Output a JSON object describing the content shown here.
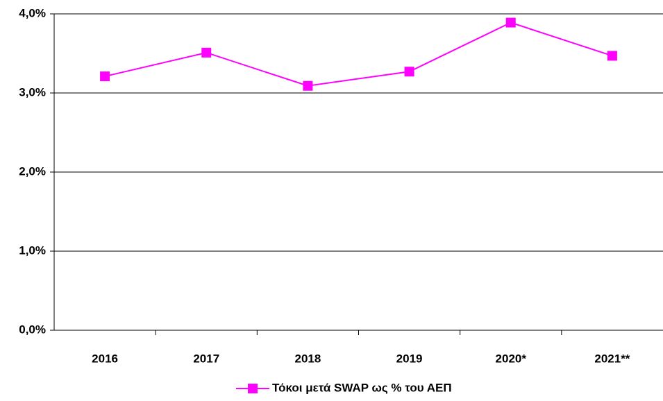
{
  "chart_data": {
    "type": "line",
    "categories": [
      "2016",
      "2017",
      "2018",
      "2019",
      "2020*",
      "2021**"
    ],
    "series": [
      {
        "name": "Τόκοι μετά SWAP ως % του ΑΕΠ",
        "color": "#ff00ff",
        "values": [
          3.21,
          3.51,
          3.09,
          3.27,
          3.89,
          3.47
        ]
      }
    ],
    "ylim": [
      0,
      4
    ],
    "yticks": [
      {
        "value": 0,
        "label": "0,0%"
      },
      {
        "value": 1,
        "label": "1,0%"
      },
      {
        "value": 2,
        "label": "2,0%"
      },
      {
        "value": 3,
        "label": "3,0%"
      },
      {
        "value": 4,
        "label": "4,0%"
      }
    ],
    "grid": true,
    "legend": "bottom"
  }
}
